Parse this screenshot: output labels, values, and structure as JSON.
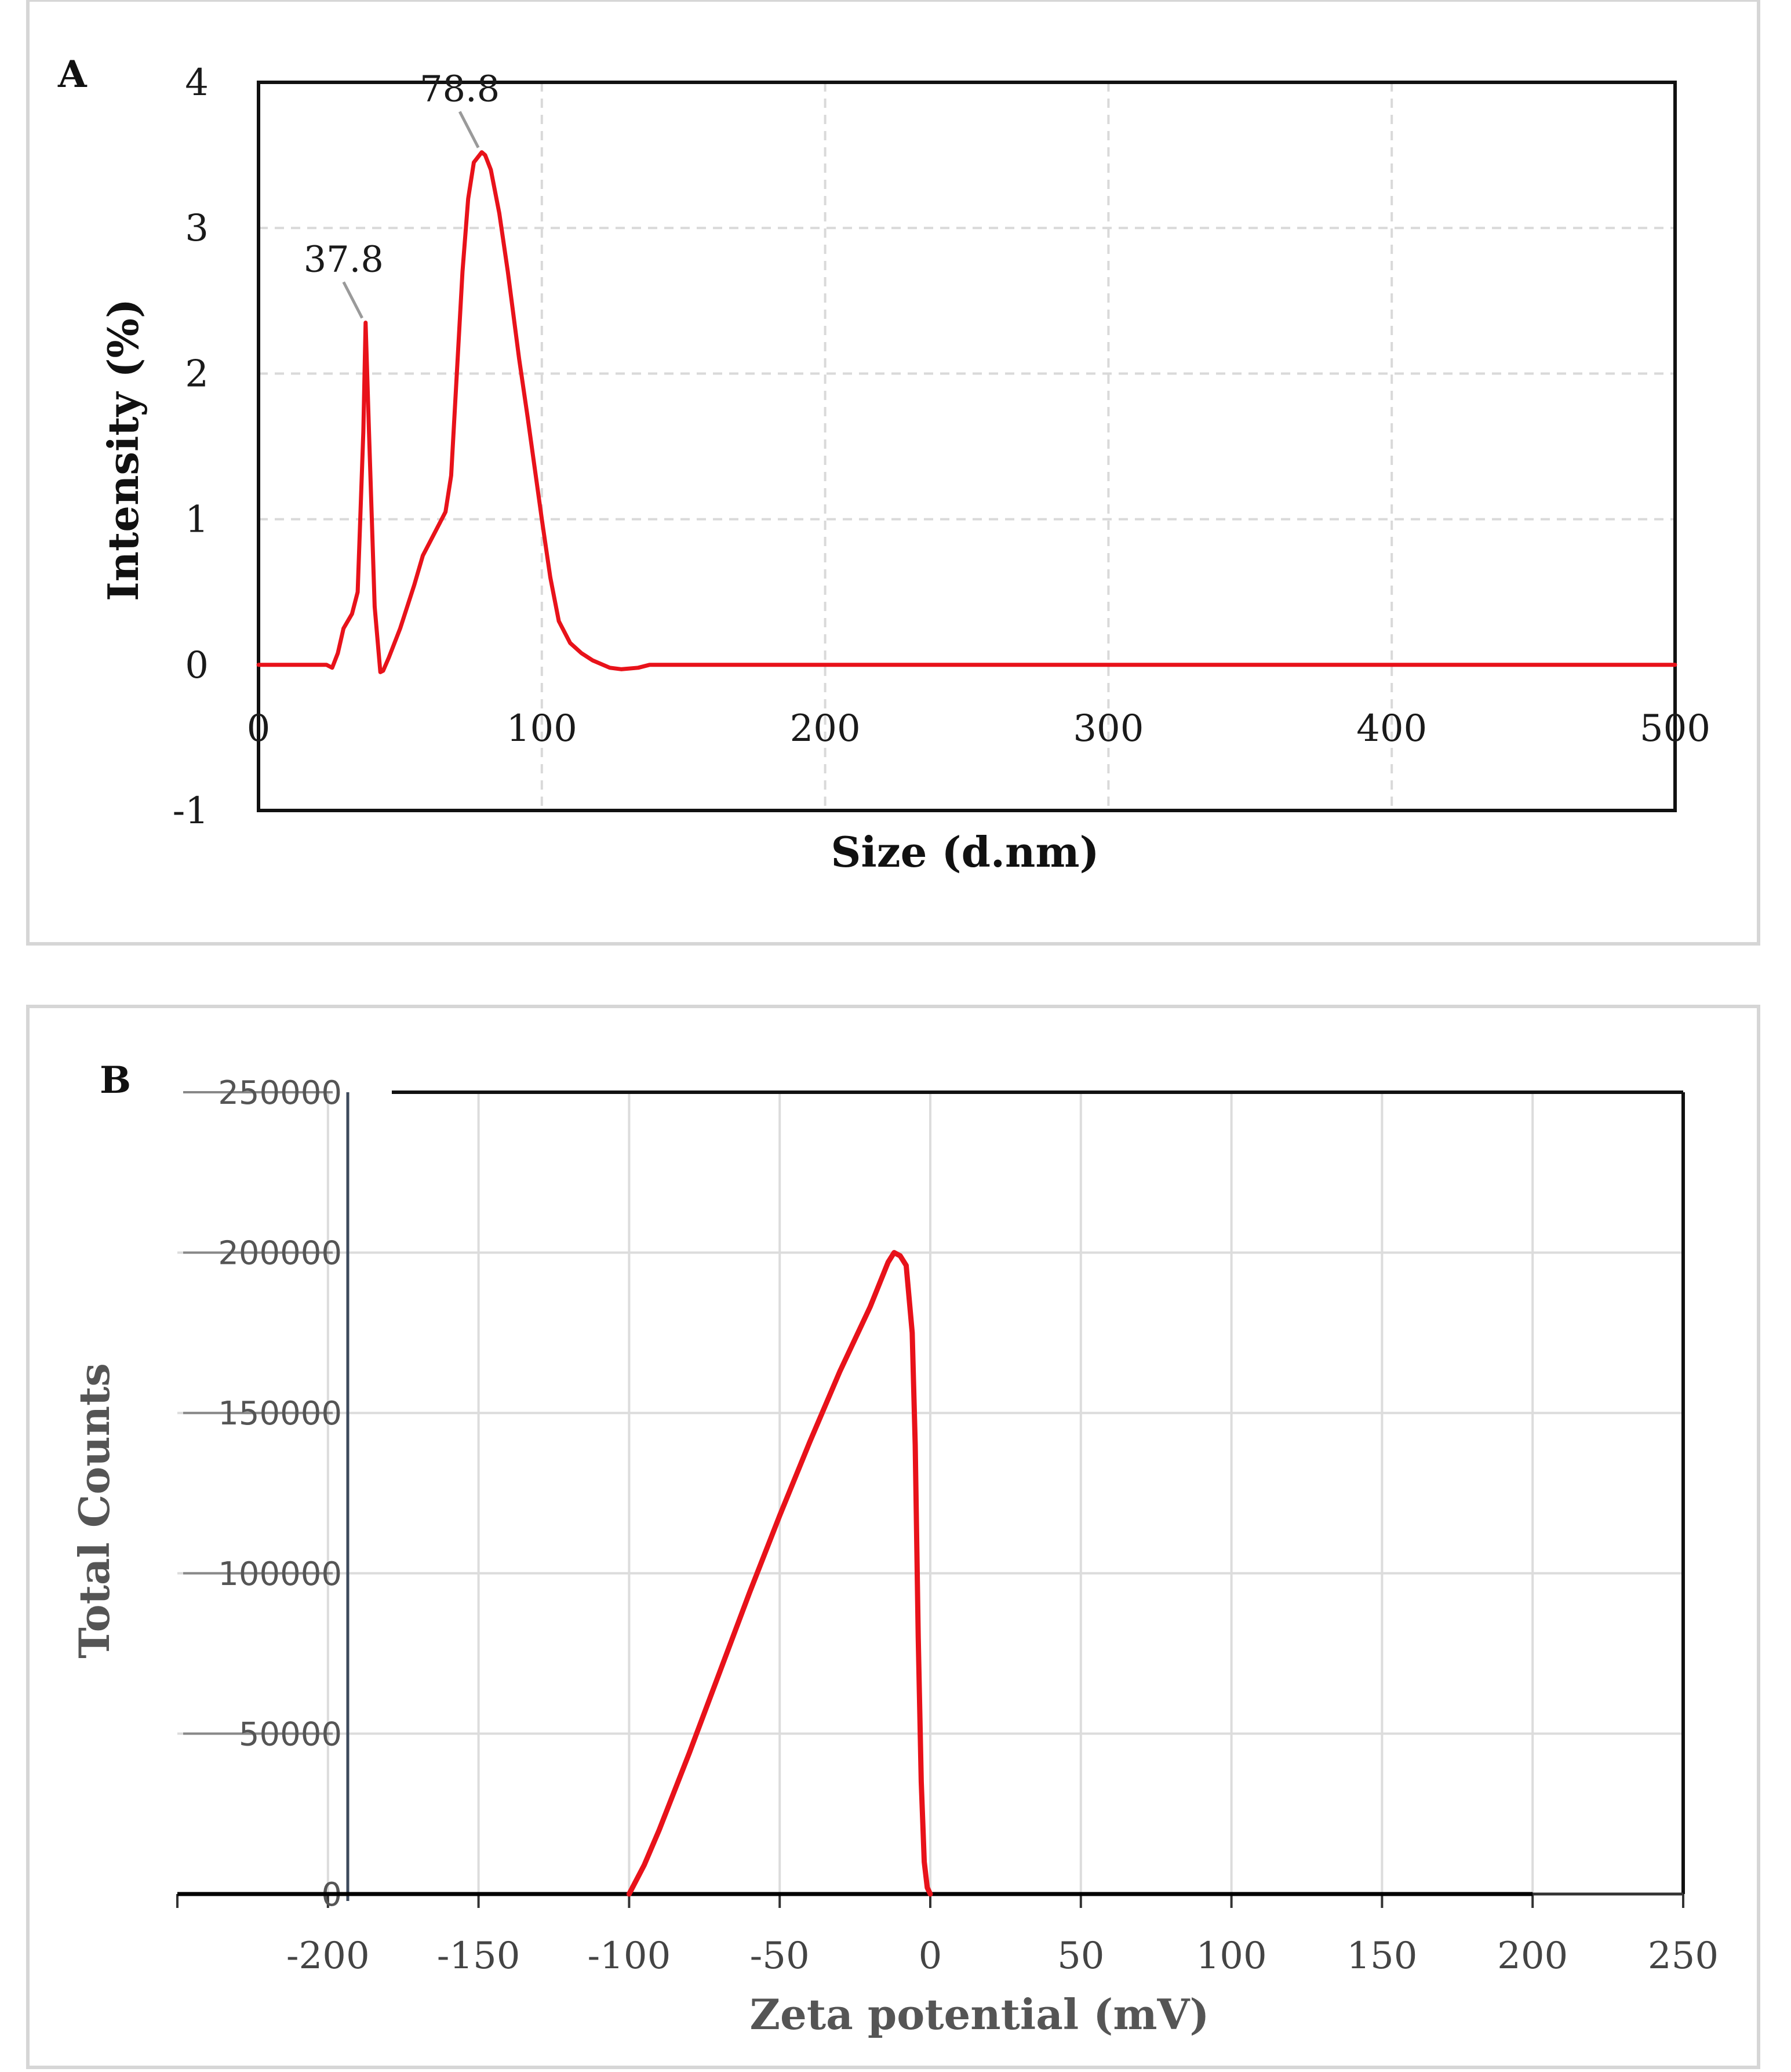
{
  "chart_data": [
    {
      "panel": "A",
      "type": "line",
      "xlabel": "Size (d.nm)",
      "ylabel": "Intensity (%)",
      "xlim": [
        0,
        500
      ],
      "ylim": [
        -1,
        4
      ],
      "xticks": [
        "0",
        "100",
        "200",
        "300",
        "400",
        "500"
      ],
      "yticks": [
        "4",
        "3",
        "2",
        "1",
        "0",
        "-1"
      ],
      "grid": true,
      "series": [
        {
          "name": "Intensity",
          "color": "#e8121a",
          "x": [
            0,
            20,
            24,
            26,
            28,
            30,
            33,
            35,
            37,
            37.8,
            39,
            41,
            43,
            44,
            46,
            50,
            55,
            58,
            62,
            66,
            68,
            70,
            72,
            74,
            76,
            78.8,
            80,
            82,
            85,
            88,
            92,
            95,
            100,
            103,
            106,
            110,
            114,
            118,
            124,
            128,
            134,
            138,
            150,
            200,
            300,
            400,
            500
          ],
          "y": [
            0,
            0,
            0,
            -0.02,
            0.08,
            0.25,
            0.35,
            0.5,
            1.6,
            2.35,
            1.6,
            0.4,
            -0.05,
            -0.04,
            0.05,
            0.25,
            0.55,
            0.75,
            0.9,
            1.05,
            1.3,
            2.0,
            2.7,
            3.2,
            3.45,
            3.52,
            3.5,
            3.4,
            3.1,
            2.7,
            2.1,
            1.7,
            1.0,
            0.6,
            0.3,
            0.15,
            0.08,
            0.03,
            -0.02,
            -0.03,
            -0.02,
            0,
            0,
            0,
            0,
            0,
            0
          ]
        }
      ],
      "annotations": [
        {
          "text": "37.8",
          "x": 37.8,
          "y": 2.35
        },
        {
          "text": "78.8",
          "x": 78.8,
          "y": 3.52
        }
      ]
    },
    {
      "panel": "B",
      "type": "line",
      "xlabel": "Zeta potential (mV)",
      "ylabel": "Total Counts",
      "xlim": [
        -250,
        250
      ],
      "ylim": [
        0,
        250000
      ],
      "xticks": [
        "-200",
        "-150",
        "-100",
        "-50",
        "0",
        "50",
        "100",
        "150",
        "200",
        "250"
      ],
      "yticks": [
        "250000",
        "200000",
        "150000",
        "100000",
        "50000",
        "0"
      ],
      "grid": true,
      "series": [
        {
          "name": "Total Counts",
          "color": "#e8121a",
          "x": [
            -100,
            -95,
            -90,
            -80,
            -70,
            -60,
            -50,
            -40,
            -30,
            -25,
            -20,
            -17,
            -14,
            -12,
            -10,
            -8,
            -6,
            -5,
            -4,
            -3,
            -2,
            -1,
            0
          ],
          "y": [
            0,
            9000,
            20000,
            44000,
            69000,
            94000,
            118000,
            141000,
            163000,
            173000,
            183000,
            190000,
            197000,
            200000,
            199000,
            196000,
            175000,
            140000,
            80000,
            35000,
            10000,
            2000,
            0
          ]
        },
        {
          "name": "baseline",
          "color": "#000000",
          "x": [
            -250,
            200
          ],
          "y": [
            0,
            0
          ]
        }
      ]
    }
  ]
}
